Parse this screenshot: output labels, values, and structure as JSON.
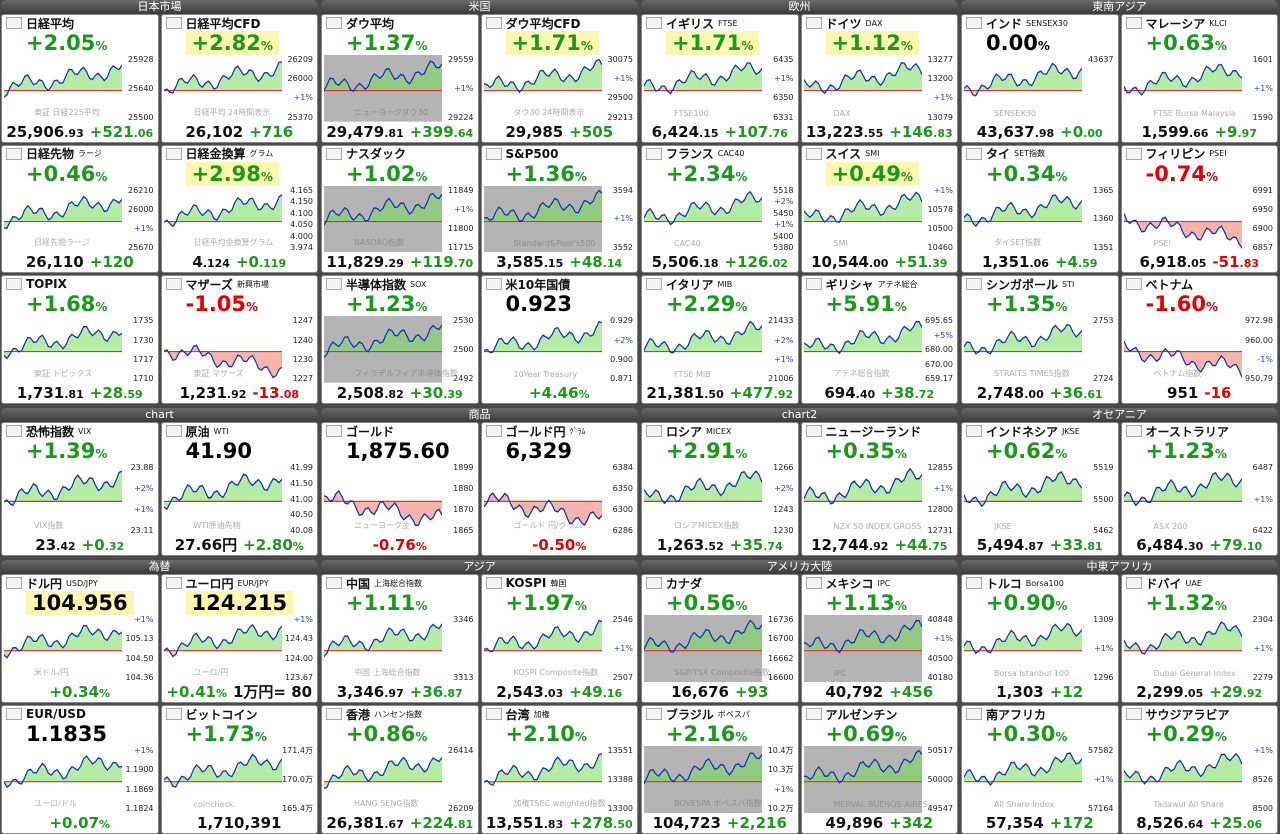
{
  "groups": [
    {
      "title": "日本市場",
      "tiles": [
        {
          "name": "日経平均",
          "top": "+2.05%",
          "bottom": [
            "25,906.93",
            "+521.06"
          ],
          "ticks": [
            "25928",
            "25640",
            "25500"
          ],
          "watermark": "東証 日経225平均"
        },
        {
          "name": "日経平均CFD",
          "top": "+2.82%",
          "highlight": true,
          "bottom": [
            "26,102",
            "+716"
          ],
          "ticks": [
            "26209",
            "26000",
            "+1%",
            "25370"
          ],
          "watermark": "日経平均 24時間表示"
        },
        {
          "name": "日経先物",
          "sub": "ラージ",
          "top": "+0.46%",
          "bottom": [
            "26,110",
            "+120"
          ],
          "ticks": [
            "26210",
            "26000",
            "+1%",
            "25670"
          ],
          "watermark": "日経先物ラージ"
        },
        {
          "name": "日経金換算",
          "sub": "グラム",
          "top": "+2.98%",
          "highlight": true,
          "bottom": [
            "4.124",
            "+0.119"
          ],
          "ticks": [
            "4.165",
            "4.150",
            "4.100",
            "4.050",
            "4.000",
            "3.974"
          ],
          "watermark": "日経平均金換算グラム"
        },
        {
          "name": "TOPIX",
          "top": "+1.68%",
          "bottom": [
            "1,731.81",
            "+28.59"
          ],
          "ticks": [
            "1735",
            "1730",
            "1717",
            "1710"
          ],
          "watermark": "東証 トピックス"
        },
        {
          "name": "マザーズ",
          "sub": "新興市場",
          "top": "-1.05%",
          "bottom": [
            "1,231.92",
            "-13.08"
          ],
          "ticks": [
            "1247",
            "1240",
            "1230",
            "1227"
          ],
          "watermark": "東証 マザーズ"
        }
      ]
    },
    {
      "title": "米国",
      "tiles": [
        {
          "name": "ダウ平均",
          "top": "+1.37%",
          "gray": true,
          "bottom": [
            "29,479.81",
            "+399.64"
          ],
          "ticks": [
            "29559",
            "+1%",
            "29224"
          ],
          "watermark": "ニューヨークダウ30"
        },
        {
          "name": "ダウ平均CFD",
          "top": "+1.71%",
          "highlight": true,
          "bottom": [
            "29,985",
            "+505"
          ],
          "ticks": [
            "30075",
            "+1%",
            "29500",
            "29213"
          ],
          "watermark": "ダウ30 24時間表示"
        },
        {
          "name": "ナスダック",
          "top": "+1.02%",
          "gray": true,
          "bottom": [
            "11,829.29",
            "+119.70"
          ],
          "ticks": [
            "11849",
            "+1%",
            "11800",
            "11715"
          ],
          "watermark": "NASDAQ指数"
        },
        {
          "name": "S&P500",
          "top": "+1.36%",
          "gray": true,
          "bottom": [
            "3,585.15",
            "+48.14"
          ],
          "ticks": [
            "3594",
            "+1%",
            "3552"
          ],
          "watermark": "Standard&Poor's500"
        },
        {
          "name": "半導体指数",
          "sub": "SOX",
          "top": "+1.23%",
          "gray": true,
          "bottom": [
            "2,508.82",
            "+30.39"
          ],
          "ticks": [
            "2530",
            "2500",
            "2492"
          ],
          "watermark": "フィラデルフィア半導体指数"
        },
        {
          "name": "米10年国債",
          "top": "0.923",
          "bottom": [
            "+4.46%"
          ],
          "ticks": [
            "0.929",
            "+2%",
            "0.900",
            "0.871"
          ],
          "watermark": "10Year Treasury"
        }
      ]
    },
    {
      "title": "欧州",
      "tiles": [
        {
          "name": "イギリス",
          "sub": "FTSE",
          "top": "+1.71%",
          "highlight": true,
          "bottom": [
            "6,424.15",
            "+107.76"
          ],
          "ticks": [
            "6435",
            "+1%",
            "6350",
            "6331"
          ],
          "watermark": "FTSE100"
        },
        {
          "name": "ドイツ",
          "sub": "DAX",
          "top": "+1.12%",
          "highlight": true,
          "bottom": [
            "13,223.55",
            "+146.83"
          ],
          "ticks": [
            "13277",
            "13200",
            "+1%",
            "13079"
          ],
          "watermark": "DAX"
        },
        {
          "name": "フランス",
          "sub": "CAC40",
          "top": "+2.34%",
          "bottom": [
            "5,506.18",
            "+126.02"
          ],
          "ticks": [
            "5518",
            "+2%",
            "5450",
            "+1%",
            "5400",
            "5380"
          ],
          "watermark": "CAC40"
        },
        {
          "name": "スイス",
          "sub": "SMI",
          "top": "+0.49%",
          "highlight": true,
          "bottom": [
            "10,544.00",
            "+51.39"
          ],
          "ticks": [
            "+1%",
            "10578",
            "10500",
            "10460"
          ],
          "watermark": "SMI"
        },
        {
          "name": "イタリア",
          "sub": "MIB",
          "top": "+2.29%",
          "bottom": [
            "21,381.50",
            "+477.92"
          ],
          "ticks": [
            "21433",
            "+2%",
            "+1%",
            "21006"
          ],
          "watermark": "FTSE MIB"
        },
        {
          "name": "ギリシャ",
          "sub": "アテネ総合",
          "top": "+5.91%",
          "bottom": [
            "694.40",
            "+38.72"
          ],
          "ticks": [
            "695.65",
            "+5%",
            "680.00",
            "670.00",
            "659.17"
          ],
          "watermark": "アテネ総合指数"
        }
      ]
    },
    {
      "title": "東南アジア",
      "tiles": [
        {
          "name": "インド",
          "sub": "SENSEX30",
          "top": "0.00%",
          "bottom": [
            "43,637.98",
            "+0.00"
          ],
          "ticks": [
            "43637"
          ],
          "watermark": "SENSEX30"
        },
        {
          "name": "マレーシア",
          "sub": "KLCI",
          "top": "+0.63%",
          "bottom": [
            "1,599.66",
            "+9.97"
          ],
          "ticks": [
            "1601",
            "+1%",
            "1590"
          ],
          "watermark": "FTSE Bursa Malaysia"
        },
        {
          "name": "タイ",
          "sub": "SET指数",
          "top": "+0.34%",
          "bottom": [
            "1,351.06",
            "+4.59"
          ],
          "ticks": [
            "1365",
            "1360",
            "1351"
          ],
          "watermark": "タイSET指数"
        },
        {
          "name": "フィリピン",
          "sub": "PSEI",
          "top": "-0.74%",
          "bottom": [
            "6,918.05",
            "-51.83"
          ],
          "ticks": [
            "6991",
            "6950",
            "6900",
            "6857"
          ],
          "watermark": "PSEI"
        },
        {
          "name": "シンガポール",
          "sub": "STI",
          "top": "+1.35%",
          "bottom": [
            "2,748.00",
            "+36.61"
          ],
          "ticks": [
            "2753",
            "2724"
          ],
          "watermark": "STRAITS TIMES指数"
        },
        {
          "name": "ベトナム",
          "top": "-1.60%",
          "bottom": [
            "951",
            "-16"
          ],
          "ticks": [
            "972.98",
            "960.00",
            "-1%",
            "950.79"
          ],
          "watermark": "ベトナム指数"
        }
      ]
    },
    {
      "title": "chart",
      "tiles": [
        {
          "name": "恐怖指数",
          "sub": "VIX",
          "top": "+1.39%",
          "bottom": [
            "23.42",
            "+0.32"
          ],
          "ticks": [
            "23.88",
            "+2%",
            "+1%",
            "23.11"
          ],
          "watermark": "VIX指数"
        },
        {
          "name": "原油",
          "sub": "WTI",
          "top": "41.90",
          "bottom": [
            "27.66円",
            "+2.80%"
          ],
          "ticks": [
            "41.99",
            "41.50",
            "41.00",
            "40.50",
            "40.08"
          ],
          "watermark": "WTI原油先物"
        }
      ]
    },
    {
      "title": "商品",
      "tiles": [
        {
          "name": "ゴールド",
          "top": "1,875.60",
          "bottom": [
            "-0.76%"
          ],
          "ticks": [
            "1899",
            "1880",
            "1870",
            "1865"
          ],
          "watermark": "ニューヨーク金"
        },
        {
          "name": "ゴールド円",
          "sub": "ｸﾞﾗﾑ",
          "top": "6,329",
          "bottom": [
            "-0.50%"
          ],
          "ticks": [
            "6384",
            "6350",
            "6300",
            "6286"
          ],
          "watermark": "ゴールド 円/グラム"
        }
      ]
    },
    {
      "title": "chart2",
      "tiles": [
        {
          "name": "ロシア",
          "sub": "MICEX",
          "top": "+2.91%",
          "bottom": [
            "1,263.52",
            "+35.74"
          ],
          "ticks": [
            "1266",
            "+2%",
            "1243",
            "1230"
          ],
          "watermark": "ロシアMICEX指数"
        },
        {
          "name": "ニュージーランド",
          "top": "+0.35%",
          "bottom": [
            "12,744.92",
            "+44.75"
          ],
          "ticks": [
            "12855",
            "+1%",
            "12800",
            "12731"
          ],
          "watermark": "NZX 50 INDEX GROSS"
        }
      ]
    },
    {
      "title": "オセアニア",
      "tiles": [
        {
          "name": "インドネシア",
          "sub": "JKSE",
          "top": "+0.62%",
          "bottom": [
            "5,494.87",
            "+33.81"
          ],
          "ticks": [
            "5519",
            "5500",
            "5462"
          ],
          "watermark": "JKSE"
        },
        {
          "name": "オーストラリア",
          "top": "+1.23%",
          "bottom": [
            "6,484.30",
            "+79.10"
          ],
          "ticks": [
            "6487",
            "+1%",
            "6422"
          ],
          "watermark": "ASX 200"
        }
      ]
    },
    {
      "title": "為替",
      "tiles": [
        {
          "name": "ドル円",
          "sub": "USD/JPY",
          "top": "104.956",
          "highlight": true,
          "bottom": [
            "+0.34%"
          ],
          "ticks": [
            "+1%",
            "105.13",
            "104.50",
            "104.36"
          ],
          "watermark": "米ドル/円"
        },
        {
          "name": "ユーロ円",
          "sub": "EUR/JPY",
          "top": "124.215",
          "highlight": true,
          "bottom": [
            "+0.41%",
            "1万円= 80"
          ],
          "ticks": [
            "+1%",
            "124.43",
            "124.00",
            "123.67"
          ],
          "watermark": "ユーロ/円"
        },
        {
          "name": "EUR/USD",
          "top": "1.1835",
          "bottom": [
            "+0.07%"
          ],
          "ticks": [
            "+1%",
            "1.1900",
            "1.1869",
            "1.1824"
          ],
          "watermark": "ユーロ/ドル"
        },
        {
          "name": "ビットコイン",
          "top": "+1.73%",
          "bottom": [
            "1,710,391"
          ],
          "ticks": [
            "171.4万",
            "170.0万",
            "165.4万"
          ],
          "watermark": "coincheck"
        }
      ]
    },
    {
      "title": "アジア",
      "tiles": [
        {
          "name": "中国",
          "sub": "上海総合指数",
          "top": "+1.11%",
          "bottom": [
            "3,346.97",
            "+36.87"
          ],
          "ticks": [
            "3346",
            "3313"
          ],
          "watermark": "中国 上海総合指数"
        },
        {
          "name": "KOSPI",
          "sub": "韓国",
          "top": "+1.97%",
          "bottom": [
            "2,543.03",
            "+49.16"
          ],
          "ticks": [
            "2546",
            "+1%",
            "2507"
          ],
          "watermark": "KOSPI Composite指数"
        },
        {
          "name": "香港",
          "sub": "ハンセン指数",
          "top": "+0.86%",
          "bottom": [
            "26,381.67",
            "+224.81"
          ],
          "ticks": [
            "26414",
            "26209"
          ],
          "watermark": "HANG SENG指数"
        },
        {
          "name": "台湾",
          "sub": "加権",
          "top": "+2.10%",
          "bottom": [
            "13,551.83",
            "+278.50"
          ],
          "ticks": [
            "13551",
            "13388",
            "13300"
          ],
          "watermark": "加権TSEC weighted指数"
        }
      ]
    },
    {
      "title": "アメリカ大陸",
      "tiles": [
        {
          "name": "カナダ",
          "top": "+0.56%",
          "gray": true,
          "bottom": [
            "16,676",
            "+93"
          ],
          "ticks": [
            "16736",
            "16700",
            "16662",
            "16600"
          ],
          "watermark": "S&P/TSX Composite指数"
        },
        {
          "name": "メキシコ",
          "sub": "IPC",
          "top": "+1.13%",
          "gray": true,
          "bottom": [
            "40,792",
            "+456"
          ],
          "ticks": [
            "40848",
            "+1%",
            "40500",
            "40180"
          ],
          "watermark": "IPC"
        },
        {
          "name": "ブラジル",
          "sub": "ボベスパ",
          "top": "+2.16%",
          "gray": true,
          "bottom": [
            "104,723",
            "+2,216"
          ],
          "ticks": [
            "10.4万",
            "10.3万",
            "+1%",
            "10.2万"
          ],
          "watermark": "BOVESPA ボベスパ指数"
        },
        {
          "name": "アルゼンチン",
          "top": "+0.69%",
          "gray": true,
          "bottom": [
            "49,896",
            "+342"
          ],
          "ticks": [
            "50517",
            "50000",
            "49547"
          ],
          "watermark": "MERVAL BUENOS AIRES"
        }
      ]
    },
    {
      "title": "中東アフリカ",
      "tiles": [
        {
          "name": "トルコ",
          "sub": "Borsa100",
          "top": "+0.90%",
          "bottom": [
            "1,303",
            "+12"
          ],
          "ticks": [
            "1309",
            "+1%",
            "1296"
          ],
          "watermark": "Borsa Istanbul 100"
        },
        {
          "name": "ドバイ",
          "sub": "UAE",
          "top": "+1.32%",
          "bottom": [
            "2,299.05",
            "+29.92"
          ],
          "ticks": [
            "2304",
            "+1%",
            "2279"
          ],
          "watermark": "Dubai General Index"
        },
        {
          "name": "南アフリカ",
          "top": "+0.30%",
          "bottom": [
            "57,354",
            "+172"
          ],
          "ticks": [
            "57582",
            "+1%",
            "57164"
          ],
          "watermark": "All Share Index"
        },
        {
          "name": "サウジアラビア",
          "top": "+0.29%",
          "bottom": [
            "8,526.64",
            "+25.06"
          ],
          "ticks": [
            "+1%",
            "8526",
            "8500"
          ],
          "watermark": "Tadawul All Share"
        }
      ]
    }
  ]
}
